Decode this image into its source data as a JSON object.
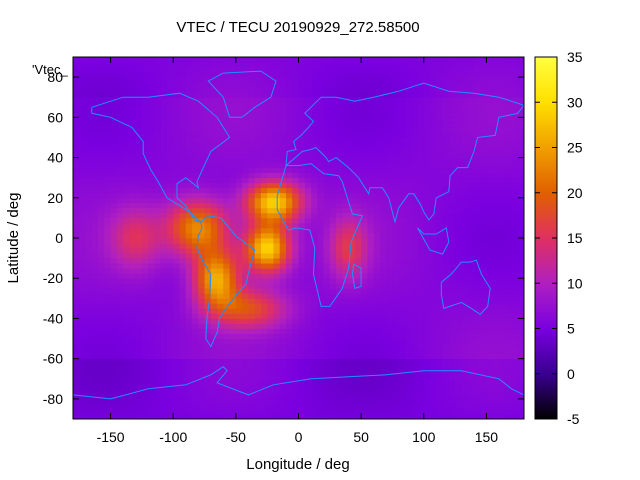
{
  "chart_data": {
    "type": "heatmap",
    "title": "VTEC / TECU 20190929_272.58500",
    "xlabel": "Longitude / deg",
    "ylabel": "Latitude / deg",
    "legend_key": "'Vtec_",
    "xlim": [
      -180,
      180
    ],
    "ylim": [
      -90,
      90
    ],
    "x_ticks": [
      -150,
      -100,
      -50,
      0,
      50,
      100,
      150
    ],
    "y_ticks": [
      -80,
      -60,
      -40,
      -20,
      0,
      20,
      40,
      60,
      80
    ],
    "colorbar": {
      "range": [
        -5,
        35
      ],
      "ticks": [
        -5,
        0,
        5,
        10,
        15,
        20,
        25,
        30,
        35
      ],
      "palette": [
        "#000000",
        "#3a0090",
        "#7a00e0",
        "#b020c0",
        "#e03060",
        "#e06000",
        "#f0a000",
        "#ffe000",
        "#ffff40"
      ]
    },
    "background_value": 6,
    "anomaly_peaks": [
      {
        "lon": -20,
        "lat": 18,
        "value": 29,
        "spread_lon": 22,
        "spread_lat": 10
      },
      {
        "lon": -25,
        "lat": -5,
        "value": 30,
        "spread_lon": 18,
        "spread_lat": 12
      },
      {
        "lon": -65,
        "lat": -20,
        "value": 26,
        "spread_lon": 18,
        "spread_lat": 14
      },
      {
        "lon": -80,
        "lat": 5,
        "value": 24,
        "spread_lon": 25,
        "spread_lat": 14
      },
      {
        "lon": -40,
        "lat": -35,
        "value": 18,
        "spread_lon": 30,
        "spread_lat": 10
      },
      {
        "lon": 40,
        "lat": -5,
        "value": 15,
        "spread_lon": 15,
        "spread_lat": 15
      },
      {
        "lon": -130,
        "lat": 0,
        "value": 14,
        "spread_lon": 20,
        "spread_lat": 15
      }
    ]
  },
  "colors": {
    "coastline": "#1e90ff"
  }
}
